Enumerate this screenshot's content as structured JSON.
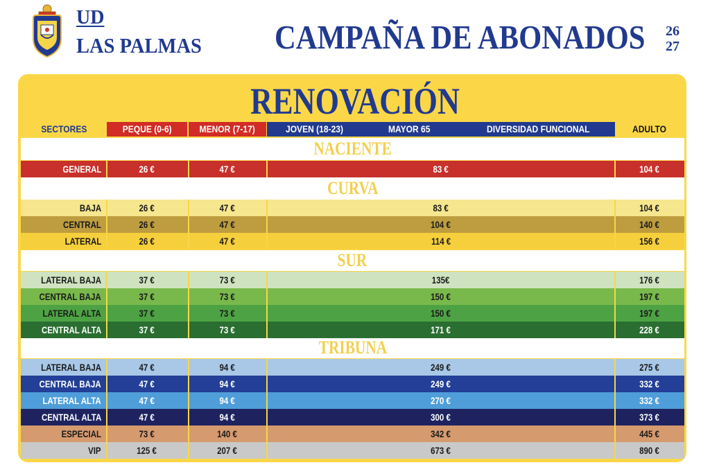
{
  "brand": {
    "ud": "UD",
    "name": "LAS PALMAS"
  },
  "title": "CAMPAÑA DE ABONADOS",
  "season": {
    "top": "26",
    "bottom": "27"
  },
  "subtitle": "RENOVACIÓN",
  "headers": {
    "sectores": "SECTORES",
    "peque": "PEQUE (0-6)",
    "menor": "MENOR (7-17)",
    "joven": "JOVEN (18-23)",
    "mayor": "MAYOR 65",
    "diversidad": "DIVERSIDAD FUNCIONAL",
    "adulto": "ADULTO"
  },
  "colors": {
    "brand_blue": "#213a8f",
    "panel_yellow": "#fbd748",
    "red": "#d12c25"
  },
  "sections": [
    {
      "name": "NACIENTE",
      "rows": [
        {
          "label": "GENERAL",
          "peque": "26 €",
          "menor": "47 €",
          "joven_mayor_div": "83 €",
          "adulto": "104 €",
          "bg": "#c8302b",
          "fg": "#ffffff"
        }
      ]
    },
    {
      "name": "CURVA",
      "rows": [
        {
          "label": "BAJA",
          "peque": "26 €",
          "menor": "47 €",
          "joven_mayor_div": "83 €",
          "adulto": "104 €",
          "bg": "#f6e68e",
          "fg": "#1a1a1a"
        },
        {
          "label": "CENTRAL",
          "peque": "26 €",
          "menor": "47 €",
          "joven_mayor_div": "104 €",
          "adulto": "140 €",
          "bg": "#bd9d3e",
          "fg": "#1a1a1a"
        },
        {
          "label": "LATERAL",
          "peque": "26 €",
          "menor": "47 €",
          "joven_mayor_div": "114 €",
          "adulto": "156 €",
          "bg": "#f6cf3c",
          "fg": "#1a1a1a"
        }
      ]
    },
    {
      "name": "SUR",
      "rows": [
        {
          "label": "LATERAL BAJA",
          "peque": "37 €",
          "menor": "73 €",
          "joven_mayor_div": "135€",
          "adulto": "176 €",
          "bg": "#cfe3c1",
          "fg": "#1a1a1a"
        },
        {
          "label": "CENTRAL BAJA",
          "peque": "37 €",
          "menor": "73 €",
          "joven_mayor_div": "150 €",
          "adulto": "197 €",
          "bg": "#79b94b",
          "fg": "#1a1a1a"
        },
        {
          "label": "LATERAL ALTA",
          "peque": "37 €",
          "menor": "73 €",
          "joven_mayor_div": "150 €",
          "adulto": "197 €",
          "bg": "#4da344",
          "fg": "#1a1a1a"
        },
        {
          "label": "CENTRAL ALTA",
          "peque": "37 €",
          "menor": "73 €",
          "joven_mayor_div": "171 €",
          "adulto": "228 €",
          "bg": "#2a6e31",
          "fg": "#ffffff"
        }
      ]
    },
    {
      "name": "TRIBUNA",
      "rows": [
        {
          "label": "LATERAL BAJA",
          "peque": "47 €",
          "menor": "94 €",
          "joven_mayor_div": "249 €",
          "adulto": "275 €",
          "bg": "#a9c8e8",
          "fg": "#1a1a1a"
        },
        {
          "label": "CENTRAL BAJA",
          "peque": "47 €",
          "menor": "94 €",
          "joven_mayor_div": "249 €",
          "adulto": "332 €",
          "bg": "#233f97",
          "fg": "#ffffff"
        },
        {
          "label": "LATERAL ALTA",
          "peque": "47 €",
          "menor": "94 €",
          "joven_mayor_div": "270 €",
          "adulto": "332 €",
          "bg": "#4f9ed9",
          "fg": "#ffffff"
        },
        {
          "label": "CENTRAL ALTA",
          "peque": "47 €",
          "menor": "94 €",
          "joven_mayor_div": "300 €",
          "adulto": "373 €",
          "bg": "#1e2360",
          "fg": "#ffffff"
        },
        {
          "label": "ESPECIAL",
          "peque": "73 €",
          "menor": "140 €",
          "joven_mayor_div": "342 €",
          "adulto": "445 €",
          "bg": "#d69a6f",
          "fg": "#1a1a1a"
        },
        {
          "label": "VIP",
          "peque": "125 €",
          "menor": "207 €",
          "joven_mayor_div": "673 €",
          "adulto": "890 €",
          "bg": "#c9c9c9",
          "fg": "#1a1a1a"
        }
      ]
    }
  ]
}
